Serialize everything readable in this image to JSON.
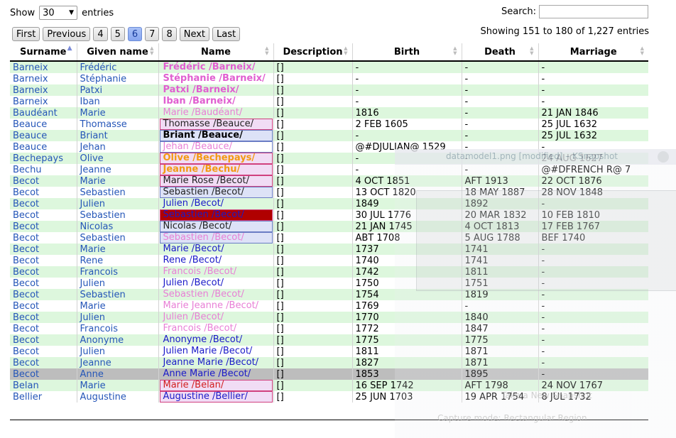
{
  "top": {
    "show_label": "Show",
    "entries_value": "30",
    "entries_label": "entries",
    "search_label": "Search:",
    "search_value": ""
  },
  "pager": {
    "first": "First",
    "previous": "Previous",
    "pages": [
      "4",
      "5",
      "6",
      "7",
      "8"
    ],
    "active_page": "6",
    "next": "Next",
    "last": "Last"
  },
  "info": "Showing 151 to 180 of 1,227 entries",
  "columns": [
    "Surname",
    "Given name",
    "Name",
    "Description",
    "Birth",
    "Death",
    "Marriage"
  ],
  "rows": [
    {
      "surname": "Barneix",
      "given": "Frédéric",
      "name": "Frédéric /Barneix/",
      "desc": "[]",
      "birth": "-",
      "death": "-",
      "marriage": "-",
      "nc": "#e05fd0",
      "nbg": "",
      "bold": true,
      "box": ""
    },
    {
      "surname": "Barneix",
      "given": "Stéphanie",
      "name": "Stéphanie /Barneix/",
      "desc": "[]",
      "birth": "-",
      "death": "-",
      "marriage": "-",
      "nc": "#e05fd0",
      "nbg": "",
      "bold": true,
      "box": ""
    },
    {
      "surname": "Barneix",
      "given": "Patxi",
      "name": "Patxi /Barneix/",
      "desc": "[]",
      "birth": "-",
      "death": "-",
      "marriage": "-",
      "nc": "#e05fd0",
      "nbg": "",
      "bold": true,
      "box": ""
    },
    {
      "surname": "Barneix",
      "given": "Iban",
      "name": "Iban /Barneix/",
      "desc": "[]",
      "birth": "-",
      "death": "-",
      "marriage": "-",
      "nc": "#e05fd0",
      "nbg": "",
      "bold": true,
      "box": ""
    },
    {
      "surname": "Baudéant",
      "given": "Marie",
      "name": "Marie /Baudéant/",
      "desc": "[]",
      "birth": "1816",
      "death": "-",
      "marriage": "21 JAN 1846",
      "nc": "#e87fd6",
      "nbg": "",
      "bold": false,
      "box": ""
    },
    {
      "surname": "Beauce",
      "given": "Thomasse",
      "name": "Thomasse /Beauce/",
      "desc": "[]",
      "birth": "2 FEB 1605",
      "death": "-",
      "marriage": "25 JUL 1632",
      "nc": "#222222",
      "nbg": "#f1dcf5",
      "bold": false,
      "box": "pink"
    },
    {
      "surname": "Beauce",
      "given": "Briant",
      "name": "Briant /Beauce/",
      "desc": "[]",
      "birth": "-",
      "death": "-",
      "marriage": "25 JUL 1632",
      "nc": "#000000",
      "nbg": "#dde2f7",
      "bold": true,
      "box": "blue"
    },
    {
      "surname": "Beauce",
      "given": "Jehan",
      "name": "Jehan /Beauce/",
      "desc": "[]",
      "birth": "@#DJULIAN@ 1529",
      "death": "-",
      "marriage": "-",
      "nc": "#e87fd6",
      "nbg": "",
      "bold": false,
      "box": "blue"
    },
    {
      "surname": "Bechepays",
      "given": "Olive",
      "name": "Olive /Bechepays/",
      "desc": "[]",
      "birth": "-",
      "death": "-",
      "marriage": "24 AUG 1627",
      "nc": "#f29a12",
      "nbg": "#f1dcf5",
      "bold": true,
      "box": "pink"
    },
    {
      "surname": "Bechu",
      "given": "Jeanne",
      "name": "Jeanne /Bechu/",
      "desc": "[]",
      "birth": "-",
      "death": "-",
      "marriage": "@#DFRENCH R@ 7",
      "nc": "#f29a12",
      "nbg": "#f1dcf5",
      "bold": true,
      "box": "pink"
    },
    {
      "surname": "Becot",
      "given": "Marie",
      "name": "Marie Rose /Becot/",
      "desc": "[]",
      "birth": "4 OCT 1851",
      "death": "AFT 1913",
      "marriage": "22 OCT 1876",
      "nc": "#222222",
      "nbg": "#f1dcf5",
      "bold": false,
      "box": "pink"
    },
    {
      "surname": "Becot",
      "given": "Sebastien",
      "name": "Sebastien /Becot/",
      "desc": "[]",
      "birth": "13 OCT 1820",
      "death": "18 MAY 1887",
      "marriage": "28 NOV 1848",
      "nc": "#222222",
      "nbg": "#dde2f7",
      "bold": false,
      "box": "blue"
    },
    {
      "surname": "Becot",
      "given": "Julien",
      "name": "Julien /Becot/",
      "desc": "[]",
      "birth": "1849",
      "death": "1892",
      "marriage": "-",
      "nc": "#1a1ac8",
      "nbg": "",
      "bold": false,
      "box": ""
    },
    {
      "surname": "Becot",
      "given": "Sebastien",
      "name": "Sebastien /Becot/",
      "desc": "[]",
      "birth": "30 JUL 1776",
      "death": "20 MAR 1832",
      "marriage": "10 FEB 1810",
      "nc": "#1a1ac8",
      "nbg": "#b00000",
      "bold": false,
      "box": "pink"
    },
    {
      "surname": "Becot",
      "given": "Nicolas",
      "name": "Nicolas /Becot/",
      "desc": "[]",
      "birth": "21 JAN 1745",
      "death": "4 OCT 1813",
      "marriage": "17 FEB 1767",
      "nc": "#222222",
      "nbg": "#dde2f7",
      "bold": false,
      "box": "blue"
    },
    {
      "surname": "Becot",
      "given": "Sebastien",
      "name": "Sebastien /Becot/",
      "desc": "[]",
      "birth": "ABT 1708",
      "death": "5 AUG 1788",
      "marriage": "BEF 1740",
      "nc": "#e87fd6",
      "nbg": "#dde2f7",
      "bold": false,
      "box": "blue"
    },
    {
      "surname": "Becot",
      "given": "Marie",
      "name": "Marie /Becot/",
      "desc": "[]",
      "birth": "1737",
      "death": "1741",
      "marriage": "-",
      "nc": "#1a1ac8",
      "nbg": "",
      "bold": false,
      "box": ""
    },
    {
      "surname": "Becot",
      "given": "Rene",
      "name": "Rene /Becot/",
      "desc": "[]",
      "birth": "1740",
      "death": "1741",
      "marriage": "-",
      "nc": "#1a1ac8",
      "nbg": "",
      "bold": false,
      "box": ""
    },
    {
      "surname": "Becot",
      "given": "Francois",
      "name": "Francois /Becot/",
      "desc": "[]",
      "birth": "1742",
      "death": "1811",
      "marriage": "-",
      "nc": "#e87fd6",
      "nbg": "",
      "bold": false,
      "box": ""
    },
    {
      "surname": "Becot",
      "given": "Julien",
      "name": "Julien /Becot/",
      "desc": "[]",
      "birth": "1750",
      "death": "1751",
      "marriage": "-",
      "nc": "#1a1ac8",
      "nbg": "",
      "bold": false,
      "box": ""
    },
    {
      "surname": "Becot",
      "given": "Sebastien",
      "name": "Sebastien /Becot/",
      "desc": "[]",
      "birth": "1754",
      "death": "1819",
      "marriage": "-",
      "nc": "#e87fd6",
      "nbg": "",
      "bold": false,
      "box": ""
    },
    {
      "surname": "Becot",
      "given": "Marie",
      "name": "Marie Jeanne /Becot/",
      "desc": "[]",
      "birth": "1769",
      "death": "-",
      "marriage": "-",
      "nc": "#e87fd6",
      "nbg": "",
      "bold": false,
      "box": ""
    },
    {
      "surname": "Becot",
      "given": "Julien",
      "name": "Julien /Becot/",
      "desc": "[]",
      "birth": "1770",
      "death": "1840",
      "marriage": "-",
      "nc": "#e87fd6",
      "nbg": "",
      "bold": false,
      "box": ""
    },
    {
      "surname": "Becot",
      "given": "Francois",
      "name": "Francois /Becot/",
      "desc": "[]",
      "birth": "1772",
      "death": "1847",
      "marriage": "-",
      "nc": "#e87fd6",
      "nbg": "",
      "bold": false,
      "box": ""
    },
    {
      "surname": "Becot",
      "given": "Anonyme",
      "name": "Anonyme /Becot/",
      "desc": "[]",
      "birth": "1775",
      "death": "1775",
      "marriage": "-",
      "nc": "#1a1ac8",
      "nbg": "",
      "bold": false,
      "box": ""
    },
    {
      "surname": "Becot",
      "given": "Julien",
      "name": "Julien Marie /Becot/",
      "desc": "[]",
      "birth": "1811",
      "death": "1871",
      "marriage": "-",
      "nc": "#1a1ac8",
      "nbg": "",
      "bold": false,
      "box": ""
    },
    {
      "surname": "Becot",
      "given": "Jeanne",
      "name": "Jeanne Marie /Becot/",
      "desc": "[]",
      "birth": "1827",
      "death": "1871",
      "marriage": "-",
      "nc": "#1a1ac8",
      "nbg": "",
      "bold": false,
      "box": ""
    },
    {
      "surname": "Becot",
      "given": "Anne",
      "name": "Anne Marie /Becot/",
      "desc": "[]",
      "birth": "1853",
      "death": "1895",
      "marriage": "-",
      "nc": "#1a1ac8",
      "nbg": "",
      "bold": false,
      "box": ""
    },
    {
      "surname": "Belan",
      "given": "Marie",
      "name": "Marie /Belan/",
      "desc": "[]",
      "birth": "16 SEP 1742",
      "death": "AFT 1798",
      "marriage": "24 NOV 1767",
      "nc": "#d21e1e",
      "nbg": "#f1dcf5",
      "bold": false,
      "box": "pink"
    },
    {
      "surname": "Bellier",
      "given": "Augustine",
      "name": "Augustine /Bellier/",
      "desc": "[]",
      "birth": "25 JUN 1703",
      "death": "19 APR 1754",
      "marriage": "8 JUL 1732",
      "nc": "#1a1ac8",
      "nbg": "#f1dcf5",
      "bold": false,
      "box": "pink"
    }
  ],
  "highlighted_row": 27,
  "overlay": {
    "title": "datamodel1.png [modified] – KSnapshot",
    "take_button": "Take a New Snapshot",
    "capture_mode": "Capture mode:",
    "capture_value": "Rectangular Region"
  }
}
